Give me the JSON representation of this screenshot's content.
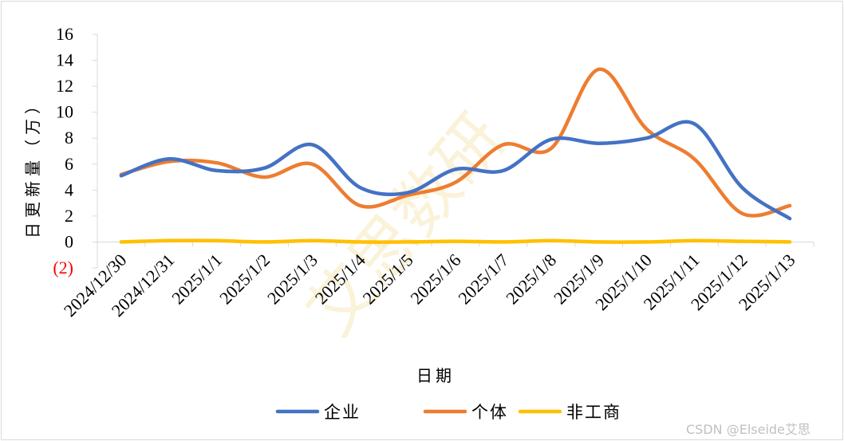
{
  "chart_data": {
    "type": "line",
    "smooth": true,
    "categories": [
      "2024/12/30",
      "2024/12/31",
      "2025/1/1",
      "2025/1/2",
      "2025/1/3",
      "2025/1/4",
      "2025/1/5",
      "2025/1/6",
      "2025/1/7",
      "2025/1/8",
      "2025/1/9",
      "2025/1/10",
      "2025/1/11",
      "2025/1/12",
      "2025/1/13"
    ],
    "series": [
      {
        "name": "企业",
        "color": "#4472c4",
        "values": [
          5.1,
          6.4,
          5.5,
          5.7,
          7.5,
          4.2,
          3.8,
          5.6,
          5.5,
          7.9,
          7.6,
          8.0,
          9.1,
          4.2,
          1.8
        ]
      },
      {
        "name": "个体",
        "color": "#ed7d31",
        "values": [
          5.2,
          6.2,
          6.1,
          5.0,
          6.0,
          2.8,
          3.6,
          4.6,
          7.5,
          7.2,
          13.3,
          8.7,
          6.4,
          2.2,
          2.8
        ]
      },
      {
        "name": "非工商",
        "color": "#ffc000",
        "values": [
          0.0,
          0.1,
          0.1,
          0.0,
          0.1,
          0.0,
          0.0,
          0.05,
          0.0,
          0.1,
          0.0,
          0.0,
          0.1,
          0.05,
          0.0
        ]
      }
    ],
    "y_ticks": [
      "(2)",
      "0",
      "2",
      "4",
      "6",
      "8",
      "10",
      "12",
      "14",
      "16"
    ],
    "y_tick_values": [
      -2,
      0,
      2,
      4,
      6,
      8,
      10,
      12,
      14,
      16
    ],
    "ylim": [
      -2,
      16
    ],
    "xlabel": "日期",
    "ylabel": "日更新量（万）",
    "legend_position": "bottom",
    "grid": false
  },
  "watermark": {
    "center_text": "艾思数研",
    "corner_text": "CSDN @Elseide艾思"
  }
}
